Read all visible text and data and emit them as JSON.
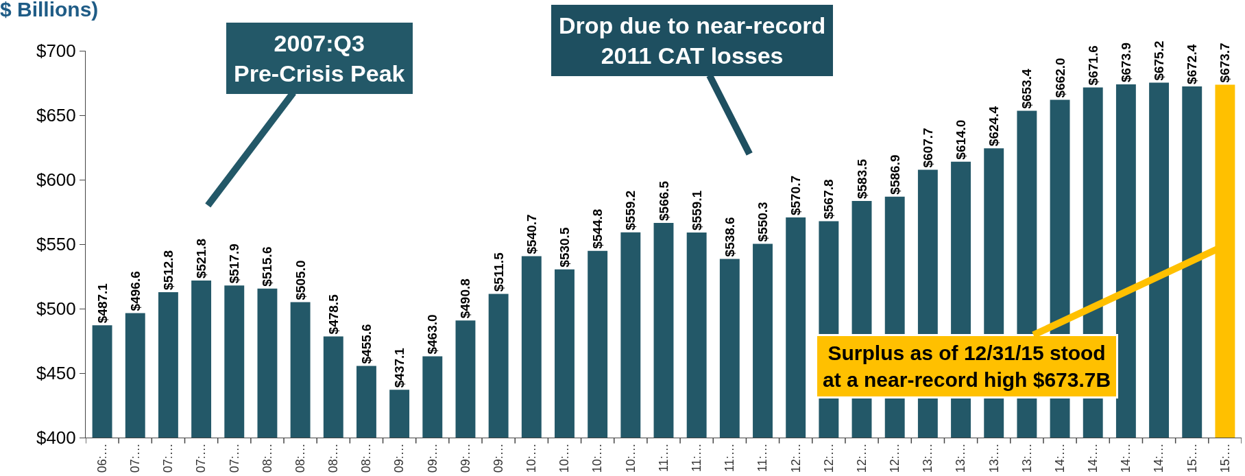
{
  "chart_data": {
    "type": "bar",
    "title": "$ Billions)",
    "categories": [
      "06:…",
      "07:…",
      "07:…",
      "07:…",
      "07:…",
      "08:…",
      "08:…",
      "08:…",
      "08:…",
      "09:…",
      "09:…",
      "09:…",
      "09:…",
      "10:…",
      "10:…",
      "10:…",
      "10:…",
      "11:…",
      "11:…",
      "11:…",
      "11:…",
      "12:…",
      "12:…",
      "12:…",
      "12:…",
      "13:…",
      "13:…",
      "13:…",
      "13:…",
      "14:…",
      "14:…",
      "14:…",
      "14:…",
      "15:…",
      "15:…"
    ],
    "values": [
      487.1,
      496.6,
      512.8,
      521.8,
      517.9,
      515.6,
      505.0,
      478.5,
      455.6,
      437.1,
      463.0,
      490.8,
      511.5,
      540.7,
      530.5,
      544.8,
      559.2,
      566.5,
      559.1,
      538.6,
      550.3,
      570.7,
      567.8,
      583.5,
      586.9,
      607.7,
      614.0,
      624.4,
      653.4,
      662.0,
      671.6,
      673.9,
      675.2,
      672.4,
      673.7
    ],
    "value_labels": [
      "$487.1",
      "$496.6",
      "$512.8",
      "$521.8",
      "$517.9",
      "$515.6",
      "$505.0",
      "$478.5",
      "$455.6",
      "$437.1",
      "$463.0",
      "$490.8",
      "$511.5",
      "$540.7",
      "$530.5",
      "$544.8",
      "$559.2",
      "$566.5",
      "$559.1",
      "$538.6",
      "$550.3",
      "$570.7",
      "$567.8",
      "$583.5",
      "$586.9",
      "$607.7",
      "$614.0",
      "$624.4",
      "$653.4",
      "$662.0",
      "$671.6",
      "$673.9",
      "$675.2",
      "$672.4",
      "$673.7"
    ],
    "colors": [
      "#235868",
      "#235868",
      "#235868",
      "#235868",
      "#235868",
      "#235868",
      "#235868",
      "#235868",
      "#235868",
      "#235868",
      "#235868",
      "#235868",
      "#235868",
      "#235868",
      "#235868",
      "#235868",
      "#235868",
      "#235868",
      "#235868",
      "#235868",
      "#235868",
      "#235868",
      "#235868",
      "#235868",
      "#235868",
      "#235868",
      "#235868",
      "#235868",
      "#235868",
      "#235868",
      "#235868",
      "#235868",
      "#235868",
      "#235868",
      "#ffc000"
    ],
    "ylim": [
      400,
      700
    ],
    "yticks": [
      {
        "value": 400,
        "label": "$400"
      },
      {
        "value": 450,
        "label": "$450"
      },
      {
        "value": 500,
        "label": "$500"
      },
      {
        "value": 550,
        "label": "$550"
      },
      {
        "value": 600,
        "label": "$600"
      },
      {
        "value": 650,
        "label": "$650"
      },
      {
        "value": 700,
        "label": "$700"
      }
    ],
    "annotations": [
      "2007:Q3\nPre-Crisis Peak",
      "Drop due to near-record\n2011 CAT losses",
      "Surplus as of 12/31/15 stood\nat a near-record high $673.7B"
    ],
    "legend": false
  }
}
